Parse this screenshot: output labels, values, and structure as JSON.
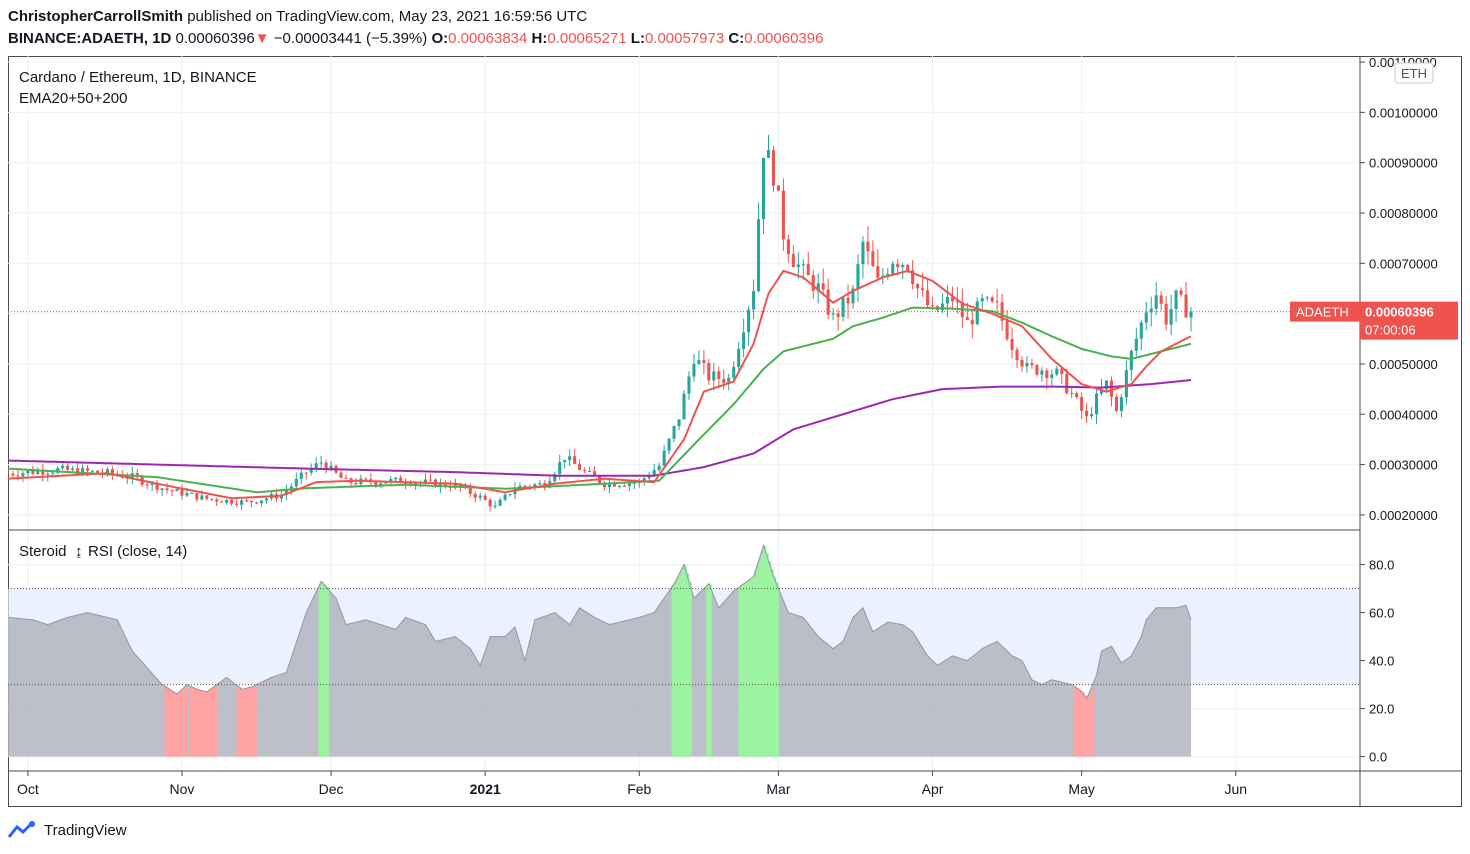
{
  "header": {
    "author": "ChristopherCarrollSmith",
    "published": "published on TradingView.com, May 23, 2021 16:59:56 UTC",
    "symbol": "BINANCE:ADAETH, 1D",
    "last": "0.00060396",
    "change_arrow": "▼",
    "change": "−0.00003441 (−5.39%)",
    "o_label": "O:",
    "o": "0.00063834",
    "h_label": "H:",
    "h": "0.00065271",
    "l_label": "L:",
    "l": "0.00057973",
    "c_label": "C:",
    "c": "0.00060396"
  },
  "footer": {
    "brand": "TradingView",
    "brand_icon": "tradingview-logo-icon"
  },
  "colors": {
    "up": "#26a69a",
    "down": "#ef5350",
    "ema20": "#ef5350",
    "ema50": "#4caf50",
    "ema200": "#9c27b0",
    "rsi_fill": "#b2b5be",
    "rsi_band": "#e3ecfd",
    "overbought": "#9bf4a0",
    "oversold": "#ffa3a3"
  },
  "chart_data": [
    {
      "type": "candlestick",
      "title": "Cardano / Ethereum, 1D, BINANCE",
      "subtitle": "EMA20+50+200",
      "currency": "ETH",
      "price_label_name": "ADAETH",
      "price_label_value": "0.00060396",
      "countdown": "07:00:06",
      "ylim": [
        0.00017,
        0.00111
      ],
      "yticks": [
        "0.00020000",
        "0.00030000",
        "0.00040000",
        "0.00050000",
        "0.00060000",
        "0.00070000",
        "0.00080000",
        "0.00090000",
        "0.00100000",
        "0.00110000"
      ],
      "ytick_values": [
        0.0002,
        0.0003,
        0.0004,
        0.0005,
        0.0006,
        0.0007,
        0.0008,
        0.0009,
        0.001,
        0.0011
      ],
      "xticks": [
        "Oct",
        "Nov",
        "Dec",
        "2021",
        "Feb",
        "Mar",
        "Apr",
        "May",
        "Jun"
      ],
      "xtick_days": [
        4,
        35,
        65,
        96,
        127,
        155,
        186,
        216,
        247
      ],
      "x_start": "2020-09-27",
      "x_end_day": 272,
      "close_anchors": [
        [
          0,
          0.000282
        ],
        [
          10,
          0.00029
        ],
        [
          20,
          0.000283
        ],
        [
          25,
          0.000275
        ],
        [
          32,
          0.00025
        ],
        [
          40,
          0.000232
        ],
        [
          48,
          0.000225
        ],
        [
          55,
          0.00024
        ],
        [
          60,
          0.000285
        ],
        [
          63,
          0.000305
        ],
        [
          68,
          0.000265
        ],
        [
          80,
          0.000268
        ],
        [
          90,
          0.000258
        ],
        [
          95,
          0.000235
        ],
        [
          98,
          0.000215
        ],
        [
          102,
          0.000255
        ],
        [
          108,
          0.000262
        ],
        [
          112,
          0.000315
        ],
        [
          116,
          0.000285
        ],
        [
          120,
          0.000262
        ],
        [
          127,
          0.000265
        ],
        [
          131,
          0.000298
        ],
        [
          135,
          0.000395
        ],
        [
          138,
          0.000515
        ],
        [
          141,
          0.000475
        ],
        [
          145,
          0.00047
        ],
        [
          148,
          0.00058
        ],
        [
          150,
          0.000655
        ],
        [
          152,
          0.00093
        ],
        [
          154,
          0.00088
        ],
        [
          156,
          0.00076
        ],
        [
          158,
          0.00071
        ],
        [
          160,
          0.00068
        ],
        [
          163,
          0.00065
        ],
        [
          166,
          0.00059
        ],
        [
          170,
          0.00064
        ],
        [
          172,
          0.00074
        ],
        [
          175,
          0.00066
        ],
        [
          178,
          0.00071
        ],
        [
          181,
          0.0007
        ],
        [
          183,
          0.00065
        ],
        [
          186,
          0.0006
        ],
        [
          190,
          0.00063
        ],
        [
          193,
          0.00058
        ],
        [
          196,
          0.00062
        ],
        [
          199,
          0.00061
        ],
        [
          202,
          0.00054
        ],
        [
          205,
          0.00049
        ],
        [
          208,
          0.00049
        ],
        [
          211,
          0.00048
        ],
        [
          214,
          0.00044
        ],
        [
          217,
          0.00039
        ],
        [
          219,
          0.00043
        ],
        [
          221,
          0.00046
        ],
        [
          223,
          0.000405
        ],
        [
          226,
          0.00052
        ],
        [
          229,
          0.00061
        ],
        [
          231,
          0.00064
        ],
        [
          233,
          0.00059
        ],
        [
          235,
          0.00063
        ],
        [
          237,
          0.00061
        ],
        [
          238,
          0.000604
        ]
      ],
      "ema20_anchors": [
        [
          0,
          0.000272
        ],
        [
          20,
          0.000283
        ],
        [
          30,
          0.000262
        ],
        [
          45,
          0.000233
        ],
        [
          55,
          0.000238
        ],
        [
          62,
          0.000265
        ],
        [
          70,
          0.000268
        ],
        [
          90,
          0.000262
        ],
        [
          100,
          0.000245
        ],
        [
          110,
          0.000262
        ],
        [
          120,
          0.000272
        ],
        [
          130,
          0.000265
        ],
        [
          136,
          0.00035
        ],
        [
          140,
          0.000445
        ],
        [
          146,
          0.000465
        ],
        [
          150,
          0.00054
        ],
        [
          153,
          0.00064
        ],
        [
          156,
          0.000685
        ],
        [
          160,
          0.000672
        ],
        [
          166,
          0.000622
        ],
        [
          170,
          0.000645
        ],
        [
          176,
          0.000672
        ],
        [
          181,
          0.000685
        ],
        [
          186,
          0.000665
        ],
        [
          192,
          0.00062
        ],
        [
          198,
          0.0006
        ],
        [
          204,
          0.000575
        ],
        [
          210,
          0.00051
        ],
        [
          216,
          0.00046
        ],
        [
          221,
          0.000445
        ],
        [
          226,
          0.00046
        ],
        [
          229,
          0.000495
        ],
        [
          232,
          0.000525
        ],
        [
          238,
          0.000555
        ]
      ],
      "ema50_anchors": [
        [
          0,
          0.000292
        ],
        [
          30,
          0.000275
        ],
        [
          50,
          0.000245
        ],
        [
          60,
          0.000253
        ],
        [
          80,
          0.00026
        ],
        [
          100,
          0.000252
        ],
        [
          120,
          0.000262
        ],
        [
          131,
          0.000268
        ],
        [
          140,
          0.00036
        ],
        [
          146,
          0.00042
        ],
        [
          152,
          0.00049
        ],
        [
          156,
          0.000525
        ],
        [
          162,
          0.00054
        ],
        [
          166,
          0.00055
        ],
        [
          170,
          0.000575
        ],
        [
          176,
          0.000592
        ],
        [
          182,
          0.000612
        ],
        [
          190,
          0.00061
        ],
        [
          198,
          0.000605
        ],
        [
          204,
          0.000582
        ],
        [
          210,
          0.000555
        ],
        [
          216,
          0.00053
        ],
        [
          222,
          0.000515
        ],
        [
          226,
          0.00051
        ],
        [
          232,
          0.000525
        ],
        [
          238,
          0.00054
        ]
      ],
      "ema200_anchors": [
        [
          0,
          0.000308
        ],
        [
          30,
          0.0003
        ],
        [
          60,
          0.000292
        ],
        [
          90,
          0.000285
        ],
        [
          110,
          0.000278
        ],
        [
          130,
          0.000278
        ],
        [
          140,
          0.000295
        ],
        [
          150,
          0.000322
        ],
        [
          158,
          0.00037
        ],
        [
          168,
          0.0004
        ],
        [
          178,
          0.00043
        ],
        [
          188,
          0.00045
        ],
        [
          200,
          0.000455
        ],
        [
          210,
          0.000455
        ],
        [
          220,
          0.000453
        ],
        [
          230,
          0.00046
        ],
        [
          238,
          0.000468
        ]
      ]
    },
    {
      "type": "area",
      "title": "Steroid",
      "title_icon": "steroid-arrows-icon",
      "subtitle": "RSI (close, 14)",
      "ylim": [
        -6,
        94
      ],
      "yticks": [
        "0.0",
        "20.0",
        "40.0",
        "60.0",
        "80.0"
      ],
      "ytick_values": [
        0,
        20,
        40,
        60,
        80
      ],
      "levels": [
        30,
        70
      ],
      "anchors": [
        [
          0,
          58
        ],
        [
          5,
          57
        ],
        [
          8,
          55
        ],
        [
          12,
          58
        ],
        [
          16,
          60
        ],
        [
          20,
          58
        ],
        [
          22,
          57
        ],
        [
          25,
          44
        ],
        [
          28,
          37
        ],
        [
          31,
          30
        ],
        [
          34,
          26
        ],
        [
          36,
          30
        ],
        [
          38,
          28
        ],
        [
          40,
          27
        ],
        [
          44,
          33
        ],
        [
          47,
          28
        ],
        [
          49,
          29
        ],
        [
          53,
          33
        ],
        [
          56,
          35
        ],
        [
          60,
          60
        ],
        [
          63,
          73
        ],
        [
          66,
          66
        ],
        [
          68,
          55
        ],
        [
          72,
          57
        ],
        [
          75,
          55
        ],
        [
          78,
          53
        ],
        [
          80,
          58
        ],
        [
          84,
          55
        ],
        [
          86,
          48
        ],
        [
          90,
          50
        ],
        [
          93,
          45
        ],
        [
          95,
          38
        ],
        [
          97,
          50
        ],
        [
          100,
          50
        ],
        [
          102,
          54
        ],
        [
          104,
          40
        ],
        [
          106,
          57
        ],
        [
          110,
          60
        ],
        [
          113,
          55
        ],
        [
          115,
          62
        ],
        [
          118,
          58
        ],
        [
          121,
          55
        ],
        [
          125,
          57
        ],
        [
          127,
          58
        ],
        [
          130,
          60
        ],
        [
          132,
          66
        ],
        [
          134,
          72
        ],
        [
          136,
          80
        ],
        [
          138,
          66
        ],
        [
          141,
          72
        ],
        [
          143,
          62
        ],
        [
          146,
          69
        ],
        [
          148,
          72
        ],
        [
          150,
          75
        ],
        [
          152,
          88
        ],
        [
          154,
          75
        ],
        [
          157,
          60
        ],
        [
          160,
          58
        ],
        [
          163,
          50
        ],
        [
          166,
          45
        ],
        [
          168,
          48
        ],
        [
          170,
          58
        ],
        [
          172,
          62
        ],
        [
          174,
          52
        ],
        [
          177,
          56
        ],
        [
          180,
          55
        ],
        [
          182,
          52
        ],
        [
          185,
          42
        ],
        [
          187,
          38
        ],
        [
          190,
          42
        ],
        [
          193,
          40
        ],
        [
          196,
          45
        ],
        [
          199,
          48
        ],
        [
          202,
          42
        ],
        [
          204,
          40
        ],
        [
          206,
          32
        ],
        [
          208,
          30
        ],
        [
          210,
          32
        ],
        [
          214,
          30
        ],
        [
          216,
          27
        ],
        [
          217,
          24
        ],
        [
          219,
          34
        ],
        [
          220,
          44
        ],
        [
          222,
          46
        ],
        [
          224,
          39
        ],
        [
          226,
          42
        ],
        [
          228,
          50
        ],
        [
          229,
          57
        ],
        [
          231,
          62
        ],
        [
          233,
          62
        ],
        [
          235,
          62
        ],
        [
          237,
          63
        ],
        [
          238,
          57
        ]
      ]
    }
  ]
}
